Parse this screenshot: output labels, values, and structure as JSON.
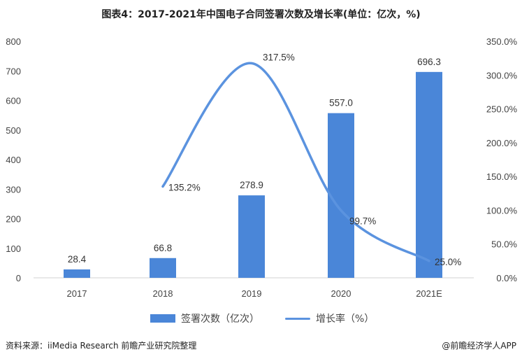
{
  "chart_data": {
    "type": "bar+line",
    "title": "图表4：2017-2021年中国电子合同签署次数及增长率(单位：亿次，%)",
    "categories": [
      "2017",
      "2018",
      "2019",
      "2020",
      "2021E"
    ],
    "series": [
      {
        "name": "签署次数（亿次）",
        "type": "bar",
        "axis": "left",
        "values": [
          28.4,
          66.8,
          278.9,
          557.0,
          696.3
        ],
        "labels": [
          "28.4",
          "66.8",
          "278.9",
          "557.0",
          "696.3"
        ],
        "color": "#4a86d8"
      },
      {
        "name": "增长率（%）",
        "type": "line",
        "axis": "right",
        "values": [
          null,
          135.2,
          317.5,
          99.7,
          25.0
        ],
        "labels": [
          "",
          "135.2%",
          "317.5%",
          "99.7%",
          "25.0%"
        ],
        "color": "#5b93df"
      }
    ],
    "left_axis": {
      "ylim": [
        0,
        800
      ],
      "ticks": [
        "0",
        "100",
        "200",
        "300",
        "400",
        "500",
        "600",
        "700",
        "800"
      ]
    },
    "right_axis": {
      "ylim": [
        0,
        350
      ],
      "ticks": [
        "0.0%",
        "50.0%",
        "100.0%",
        "150.0%",
        "200.0%",
        "250.0%",
        "300.0%",
        "350.0%"
      ]
    },
    "grid": false,
    "legend": "bottom"
  },
  "footer": {
    "source": "资料来源：iiMedia Research 前瞻产业研究院整理",
    "brand": "@前瞻经济学人APP"
  }
}
